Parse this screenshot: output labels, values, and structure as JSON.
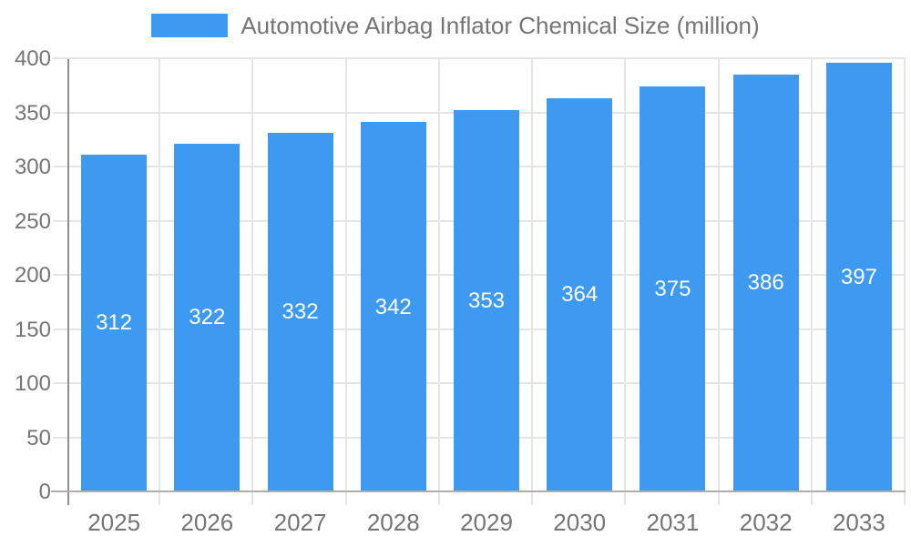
{
  "chart_data": {
    "type": "bar",
    "legend": "Automotive Airbag Inflator Chemical Size (million)",
    "categories": [
      "2025",
      "2026",
      "2027",
      "2028",
      "2029",
      "2030",
      "2031",
      "2032",
      "2033"
    ],
    "values": [
      312,
      322,
      332,
      342,
      353,
      364,
      375,
      386,
      397
    ],
    "yticks": [
      0,
      50,
      100,
      150,
      200,
      250,
      300,
      350,
      400
    ],
    "ylim": [
      0,
      400
    ],
    "grid": true,
    "legend_position": "top-center",
    "value_labels": "centered-in-bar",
    "colors": {
      "bar": "#3D9AF0",
      "axis_line": "#8F8F8F",
      "x_axis_line": "#ADADAD",
      "gridline": "#E5E5E5",
      "text": "#757575",
      "value_label": "#FFFFFF",
      "background": "#FFFFFF"
    }
  }
}
